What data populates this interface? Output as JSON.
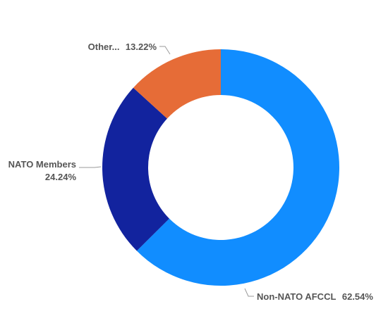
{
  "chart_data": {
    "type": "pie",
    "donut": true,
    "slices": [
      {
        "name": "Non-NATO AFCCL",
        "value": 62.54,
        "label": "62.54%",
        "color": "#118DFF"
      },
      {
        "name": "NATO Members",
        "value": 24.24,
        "label": "24.24%",
        "color": "#12239E"
      },
      {
        "name": "Other...",
        "value": 13.22,
        "label": "13.22%",
        "color": "#E66C37"
      }
    ]
  }
}
